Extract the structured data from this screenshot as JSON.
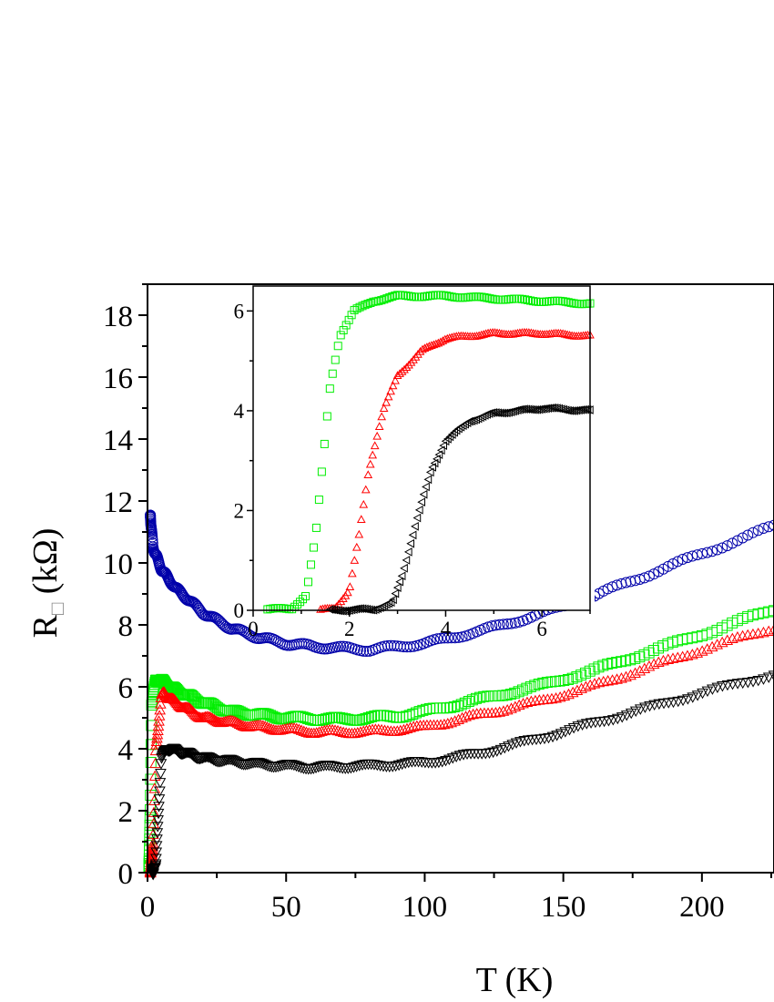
{
  "chart_data": [
    {
      "type": "scatter",
      "panel": "main",
      "xlabel": "T (K)",
      "ylabel": {
        "main": "R",
        "subscript": "□",
        "unit": " (kΩ)"
      },
      "xlim": [
        0,
        226
      ],
      "ylim": [
        0,
        19
      ],
      "xticks": [
        0,
        50,
        100,
        150,
        200
      ],
      "yticks": [
        0,
        2,
        4,
        6,
        8,
        10,
        12,
        14,
        16,
        18
      ],
      "grid": false,
      "series": [
        {
          "color": "#0000aa",
          "marker": "circle",
          "x": [
            1,
            2,
            5,
            10,
            20,
            30,
            40,
            50,
            60,
            70,
            80,
            90,
            100,
            120,
            140,
            160,
            180,
            200,
            215,
            226
          ],
          "y": [
            11.5,
            10.5,
            9.8,
            9.2,
            8.4,
            7.9,
            7.6,
            7.4,
            7.3,
            7.25,
            7.2,
            7.3,
            7.4,
            7.8,
            8.3,
            8.9,
            9.6,
            10.3,
            10.8,
            11.2
          ]
        },
        {
          "color": "#00ee00",
          "marker": "square",
          "x": [
            0.5,
            1,
            1.5,
            3,
            5,
            10,
            20,
            30,
            50,
            70,
            90,
            100,
            120,
            140,
            160,
            180,
            200,
            226
          ],
          "y": [
            0.1,
            2,
            5.5,
            6.2,
            6.2,
            5.9,
            5.5,
            5.2,
            5.0,
            4.95,
            5.05,
            5.2,
            5.6,
            6.0,
            6.5,
            7.1,
            7.7,
            8.5
          ]
        },
        {
          "color": "#ff0000",
          "marker": "triangle-up",
          "x": [
            1,
            2,
            3,
            5,
            6,
            10,
            20,
            40,
            60,
            80,
            100,
            120,
            140,
            160,
            180,
            200,
            226
          ],
          "y": [
            0,
            1,
            4,
            5.7,
            5.8,
            5.5,
            5.0,
            4.7,
            4.55,
            4.55,
            4.7,
            5.1,
            5.5,
            6.0,
            6.6,
            7.2,
            7.9
          ]
        },
        {
          "color": "#000000",
          "marker": "triangle-down",
          "x": [
            2,
            3,
            4,
            5,
            7,
            10,
            20,
            40,
            60,
            80,
            100,
            120,
            140,
            160,
            180,
            200,
            226
          ],
          "y": [
            0,
            0.3,
            2,
            3.7,
            4.0,
            3.95,
            3.7,
            3.5,
            3.4,
            3.45,
            3.55,
            3.85,
            4.3,
            4.8,
            5.3,
            5.8,
            6.4
          ]
        }
      ]
    },
    {
      "type": "scatter",
      "panel": "inset",
      "xlim": [
        0,
        7
      ],
      "ylim": [
        0,
        6.5
      ],
      "xticks": [
        0,
        2,
        4,
        6
      ],
      "yticks": [
        0,
        2,
        4,
        6
      ],
      "grid": false,
      "series": [
        {
          "color": "#00ee00",
          "marker": "square",
          "x": [
            0.3,
            0.8,
            1.1,
            1.3,
            1.45,
            1.6,
            1.8,
            2.1,
            2.5,
            3,
            4,
            5,
            6,
            7
          ],
          "y": [
            0.02,
            0.03,
            0.3,
            1.5,
            3,
            4.5,
            5.5,
            6.0,
            6.2,
            6.3,
            6.3,
            6.25,
            6.2,
            6.15
          ]
        },
        {
          "color": "#ff0000",
          "marker": "triangle-up",
          "x": [
            1.4,
            1.7,
            2.0,
            2.2,
            2.4,
            2.7,
            3.0,
            3.5,
            4,
            5,
            6,
            7
          ],
          "y": [
            0,
            0.05,
            0.4,
            1.5,
            2.8,
            4,
            4.7,
            5.2,
            5.45,
            5.55,
            5.55,
            5.5
          ]
        },
        {
          "color": "#000000",
          "marker": "triangle-left",
          "x": [
            1.6,
            2.5,
            2.9,
            3.1,
            3.4,
            3.7,
            4.0,
            4.5,
            5,
            6,
            7
          ],
          "y": [
            0,
            0.02,
            0.15,
            0.7,
            1.8,
            2.8,
            3.4,
            3.8,
            3.95,
            4.05,
            4.0
          ]
        }
      ]
    }
  ]
}
